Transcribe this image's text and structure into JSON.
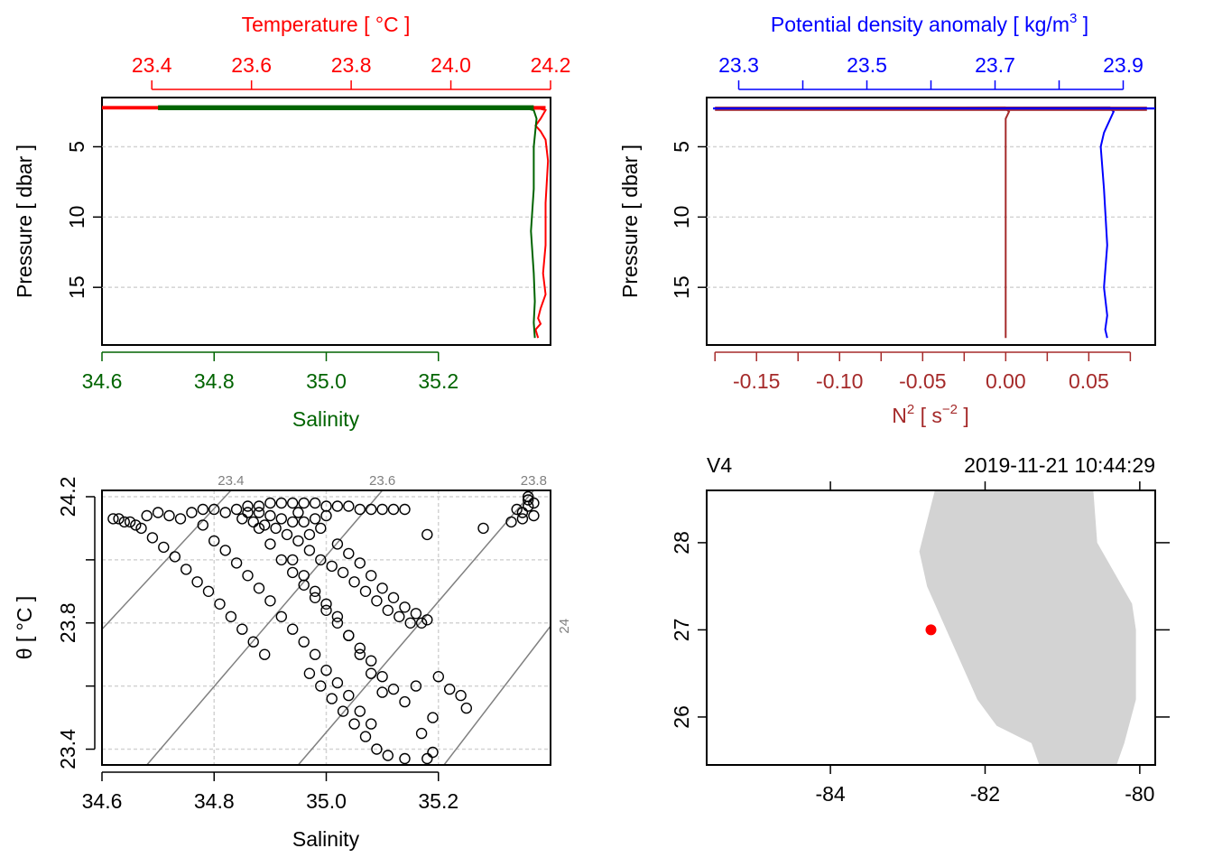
{
  "colors": {
    "temperature": "#ff0000",
    "salinity": "#006400",
    "density": "#0000ff",
    "n2": "#a52a2a",
    "grid": "#d3d3d3",
    "isopycnal": "#808080",
    "coast": "#d3d3d3",
    "station": "#ff0000"
  },
  "panels": {
    "ts_profile": {
      "top_label": "Temperature [ °C ]",
      "bottom_label": "Salinity",
      "y_label": "Pressure [ dbar ]"
    },
    "density_profile": {
      "top_label_main": "Potential density anomaly [ kg/m",
      "top_label_sup": "3",
      "top_label_end": " ]",
      "bottom_label_main": "N",
      "bottom_label_sup": "2",
      "bottom_label_mid": " [ s",
      "bottom_label_sup2": "−2",
      "bottom_label_end": " ]",
      "y_label": "Pressure [ dbar ]"
    },
    "ts_diagram": {
      "x_label": "Salinity",
      "y_label": "θ [ °C ]"
    },
    "map": {
      "station_name": "V4",
      "datetime": "2019-11-21 10:44:29"
    }
  },
  "chart_data": [
    {
      "type": "line",
      "panel": "ts_profile",
      "y_axis": {
        "label": "Pressure [ dbar ]",
        "ticks": [
          "5",
          "10",
          "15"
        ],
        "reversed": true,
        "range": [
          1.5,
          19.1
        ]
      },
      "x_axis_bottom": {
        "label": "Salinity",
        "ticks": [
          "34.6",
          "34.8",
          "35.0",
          "35.2"
        ],
        "range": [
          34.6,
          35.4
        ]
      },
      "x_axis_top": {
        "label": "Temperature [ °C ]",
        "ticks": [
          "23.4",
          "23.6",
          "23.8",
          "24.0",
          "24.2"
        ],
        "range": [
          23.3,
          24.2
        ]
      },
      "grid": true,
      "series": [
        {
          "name": "Temperature",
          "axis": "top",
          "pressure": [
            2.2,
            2.25,
            2.3,
            2.4,
            3.0,
            3.5,
            3.9,
            4.5,
            6.0,
            9.0,
            12.0,
            14.0,
            15.5,
            16.5,
            17.2,
            17.6,
            18.0,
            18.6
          ],
          "values": [
            24.19,
            24.0,
            24.18,
            24.19,
            24.18,
            24.17,
            24.18,
            24.19,
            24.195,
            24.19,
            24.19,
            24.185,
            24.19,
            24.18,
            24.175,
            24.18,
            24.17,
            24.175
          ]
        },
        {
          "name": "Salinity",
          "axis": "bottom",
          "pressure": [
            2.2,
            2.25,
            2.3,
            2.4,
            3.0,
            5.0,
            8.0,
            11.0,
            14.0,
            16.0,
            17.5,
            18.6
          ],
          "values": [
            35.37,
            34.72,
            35.36,
            35.37,
            35.375,
            35.37,
            35.37,
            35.365,
            35.37,
            35.372,
            35.37,
            35.372
          ]
        }
      ]
    },
    {
      "type": "line",
      "panel": "density_profile",
      "y_axis": {
        "label": "Pressure [ dbar ]",
        "ticks": [
          "5",
          "10",
          "15"
        ],
        "reversed": true,
        "range": [
          1.5,
          19.1
        ]
      },
      "x_axis_top": {
        "label": "Potential density anomaly [ kg/m3 ]",
        "ticks": [
          "23.3",
          "23.5",
          "23.7",
          "23.9"
        ],
        "range": [
          23.25,
          23.95
        ]
      },
      "x_axis_bottom": {
        "label": "N2 [ s-2 ]",
        "ticks": [
          "-0.15",
          "-0.10",
          "-0.05",
          "0.00",
          "0.05"
        ],
        "range": [
          -0.18,
          0.09
        ]
      },
      "grid": true,
      "series": [
        {
          "name": "Potential density anomaly",
          "axis": "top",
          "pressure": [
            2.2,
            2.25,
            2.3,
            2.5,
            3.0,
            3.5,
            4.0,
            5.0,
            8.0,
            12.0,
            15.0,
            17.0,
            18.0,
            18.6
          ],
          "values": [
            23.88,
            23.27,
            23.88,
            23.885,
            23.88,
            23.875,
            23.87,
            23.865,
            23.87,
            23.875,
            23.87,
            23.875,
            23.872,
            23.875
          ]
        },
        {
          "name": "N2",
          "axis": "bottom",
          "pressure": [
            2.2,
            2.25,
            2.3,
            2.5,
            3.0,
            4.0,
            8.0,
            12.0,
            16.0,
            18.6
          ],
          "values": [
            0.0,
            -0.17,
            0.0,
            0.002,
            0.0,
            0.0,
            0.0,
            0.0,
            0.0,
            0.0
          ]
        }
      ]
    },
    {
      "type": "scatter",
      "panel": "ts_diagram",
      "x_axis": {
        "label": "Salinity",
        "ticks": [
          "34.6",
          "34.8",
          "35.0",
          "35.2"
        ],
        "range": [
          34.6,
          35.4
        ]
      },
      "y_axis": {
        "label": "θ [ °C ]",
        "ticks": [
          "23.4",
          "23.8",
          "24.2"
        ],
        "range": [
          23.35,
          24.22
        ]
      },
      "grid": true,
      "isopycnals": [
        {
          "label": "23.4",
          "points": [
            [
              34.6,
              23.78
            ],
            [
              34.83,
              24.22
            ]
          ]
        },
        {
          "label": "23.6",
          "points": [
            [
              34.68,
              23.35
            ],
            [
              35.1,
              24.22
            ]
          ]
        },
        {
          "label": "23.8",
          "points": [
            [
              34.95,
              23.35
            ],
            [
              35.37,
              24.22
            ]
          ]
        },
        {
          "label": "24",
          "points": [
            [
              35.21,
              23.35
            ],
            [
              35.4,
              23.79
            ]
          ]
        }
      ],
      "points": [
        [
          34.62,
          24.13
        ],
        [
          34.63,
          24.13
        ],
        [
          34.64,
          24.12
        ],
        [
          34.65,
          24.12
        ],
        [
          34.66,
          24.11
        ],
        [
          34.68,
          24.14
        ],
        [
          34.7,
          24.15
        ],
        [
          34.72,
          24.14
        ],
        [
          34.74,
          24.13
        ],
        [
          34.76,
          24.15
        ],
        [
          34.78,
          24.16
        ],
        [
          34.8,
          24.16
        ],
        [
          34.82,
          24.15
        ],
        [
          34.84,
          24.16
        ],
        [
          34.86,
          24.17
        ],
        [
          34.88,
          24.17
        ],
        [
          34.9,
          24.18
        ],
        [
          34.92,
          24.18
        ],
        [
          34.94,
          24.18
        ],
        [
          34.96,
          24.18
        ],
        [
          34.98,
          24.18
        ],
        [
          35.0,
          24.17
        ],
        [
          35.02,
          24.17
        ],
        [
          35.04,
          24.17
        ],
        [
          35.06,
          24.16
        ],
        [
          35.08,
          24.16
        ],
        [
          35.1,
          24.16
        ],
        [
          35.12,
          24.16
        ],
        [
          35.14,
          24.16
        ],
        [
          34.85,
          24.13
        ],
        [
          34.87,
          24.12
        ],
        [
          34.89,
          24.11
        ],
        [
          34.91,
          24.1
        ],
        [
          34.93,
          24.08
        ],
        [
          34.95,
          24.06
        ],
        [
          34.97,
          24.08
        ],
        [
          34.99,
          24.1
        ],
        [
          34.9,
          24.14
        ],
        [
          34.92,
          24.13
        ],
        [
          34.94,
          24.12
        ],
        [
          34.96,
          24.12
        ],
        [
          34.98,
          24.13
        ],
        [
          34.86,
          24.15
        ],
        [
          34.88,
          24.15
        ],
        [
          34.95,
          24.15
        ],
        [
          35.0,
          24.14
        ],
        [
          34.67,
          24.1
        ],
        [
          34.69,
          24.07
        ],
        [
          34.71,
          24.04
        ],
        [
          34.73,
          24.01
        ],
        [
          34.75,
          23.97
        ],
        [
          34.77,
          23.93
        ],
        [
          34.79,
          23.9
        ],
        [
          34.81,
          23.86
        ],
        [
          34.83,
          23.82
        ],
        [
          34.85,
          23.78
        ],
        [
          34.87,
          23.74
        ],
        [
          34.89,
          23.7
        ],
        [
          34.78,
          24.11
        ],
        [
          34.8,
          24.06
        ],
        [
          34.82,
          24.03
        ],
        [
          34.84,
          23.99
        ],
        [
          34.86,
          23.95
        ],
        [
          34.88,
          23.91
        ],
        [
          34.9,
          23.87
        ],
        [
          34.92,
          23.82
        ],
        [
          34.94,
          23.78
        ],
        [
          34.96,
          23.74
        ],
        [
          34.98,
          23.7
        ],
        [
          35.0,
          23.65
        ],
        [
          35.02,
          23.61
        ],
        [
          35.04,
          23.57
        ],
        [
          35.06,
          23.52
        ],
        [
          35.08,
          23.48
        ],
        [
          34.88,
          24.1
        ],
        [
          34.9,
          24.05
        ],
        [
          34.92,
          24.0
        ],
        [
          34.94,
          23.96
        ],
        [
          34.96,
          23.92
        ],
        [
          34.98,
          23.88
        ],
        [
          35.0,
          23.84
        ],
        [
          35.02,
          23.8
        ],
        [
          35.04,
          23.76
        ],
        [
          35.06,
          23.72
        ],
        [
          35.08,
          23.68
        ],
        [
          35.1,
          23.63
        ],
        [
          35.12,
          23.59
        ],
        [
          35.14,
          23.55
        ],
        [
          34.94,
          24.0
        ],
        [
          34.96,
          23.95
        ],
        [
          34.98,
          23.9
        ],
        [
          35.0,
          23.86
        ],
        [
          35.02,
          23.82
        ],
        [
          35.04,
          23.76
        ],
        [
          35.06,
          23.7
        ],
        [
          35.08,
          23.64
        ],
        [
          35.1,
          23.58
        ],
        [
          34.97,
          23.64
        ],
        [
          34.99,
          23.6
        ],
        [
          35.01,
          23.56
        ],
        [
          35.03,
          23.52
        ],
        [
          35.05,
          23.48
        ],
        [
          35.07,
          23.44
        ],
        [
          35.09,
          23.4
        ],
        [
          35.11,
          23.38
        ],
        [
          35.14,
          23.37
        ],
        [
          35.18,
          23.37
        ],
        [
          34.97,
          24.03
        ],
        [
          34.99,
          24.0
        ],
        [
          35.01,
          23.98
        ],
        [
          35.03,
          23.96
        ],
        [
          35.05,
          23.93
        ],
        [
          35.07,
          23.9
        ],
        [
          35.09,
          23.87
        ],
        [
          35.11,
          23.84
        ],
        [
          35.13,
          23.82
        ],
        [
          35.15,
          23.8
        ],
        [
          35.17,
          23.8
        ],
        [
          35.02,
          24.05
        ],
        [
          35.04,
          24.02
        ],
        [
          35.06,
          23.99
        ],
        [
          35.08,
          23.95
        ],
        [
          35.1,
          23.91
        ],
        [
          35.12,
          23.88
        ],
        [
          35.14,
          23.85
        ],
        [
          35.16,
          23.83
        ],
        [
          35.18,
          23.81
        ],
        [
          35.18,
          24.08
        ],
        [
          35.2,
          23.63
        ],
        [
          35.22,
          23.59
        ],
        [
          35.24,
          23.57
        ],
        [
          35.25,
          23.53
        ],
        [
          35.16,
          23.6
        ],
        [
          35.19,
          23.5
        ],
        [
          35.17,
          23.45
        ],
        [
          35.19,
          23.39
        ],
        [
          35.28,
          24.1
        ],
        [
          35.33,
          24.12
        ],
        [
          35.35,
          24.15
        ],
        [
          35.36,
          24.17
        ],
        [
          35.37,
          24.18
        ],
        [
          35.36,
          24.19
        ],
        [
          35.37,
          24.14
        ],
        [
          35.35,
          24.13
        ],
        [
          35.34,
          24.16
        ],
        [
          35.36,
          24.2
        ]
      ]
    },
    {
      "type": "map",
      "panel": "map",
      "x_axis": {
        "ticks": [
          "-84",
          "-82",
          "-80"
        ],
        "range": [
          -85.6,
          -79.8
        ]
      },
      "y_axis": {
        "ticks": [
          "26",
          "27",
          "28"
        ],
        "range": [
          25.45,
          28.6
        ]
      },
      "station": {
        "lon": -82.7,
        "lat": 27.0
      },
      "coastline": [
        [
          -82.65,
          28.6
        ],
        [
          -82.85,
          27.9
        ],
        [
          -82.75,
          27.5
        ],
        [
          -82.45,
          26.9
        ],
        [
          -82.1,
          26.2
        ],
        [
          -81.85,
          25.9
        ],
        [
          -81.4,
          25.7
        ],
        [
          -81.3,
          25.45
        ],
        [
          -80.3,
          25.45
        ],
        [
          -80.2,
          25.7
        ],
        [
          -80.05,
          26.2
        ],
        [
          -80.05,
          27.0
        ],
        [
          -80.1,
          27.3
        ],
        [
          -80.55,
          28.0
        ],
        [
          -80.6,
          28.6
        ]
      ]
    }
  ]
}
